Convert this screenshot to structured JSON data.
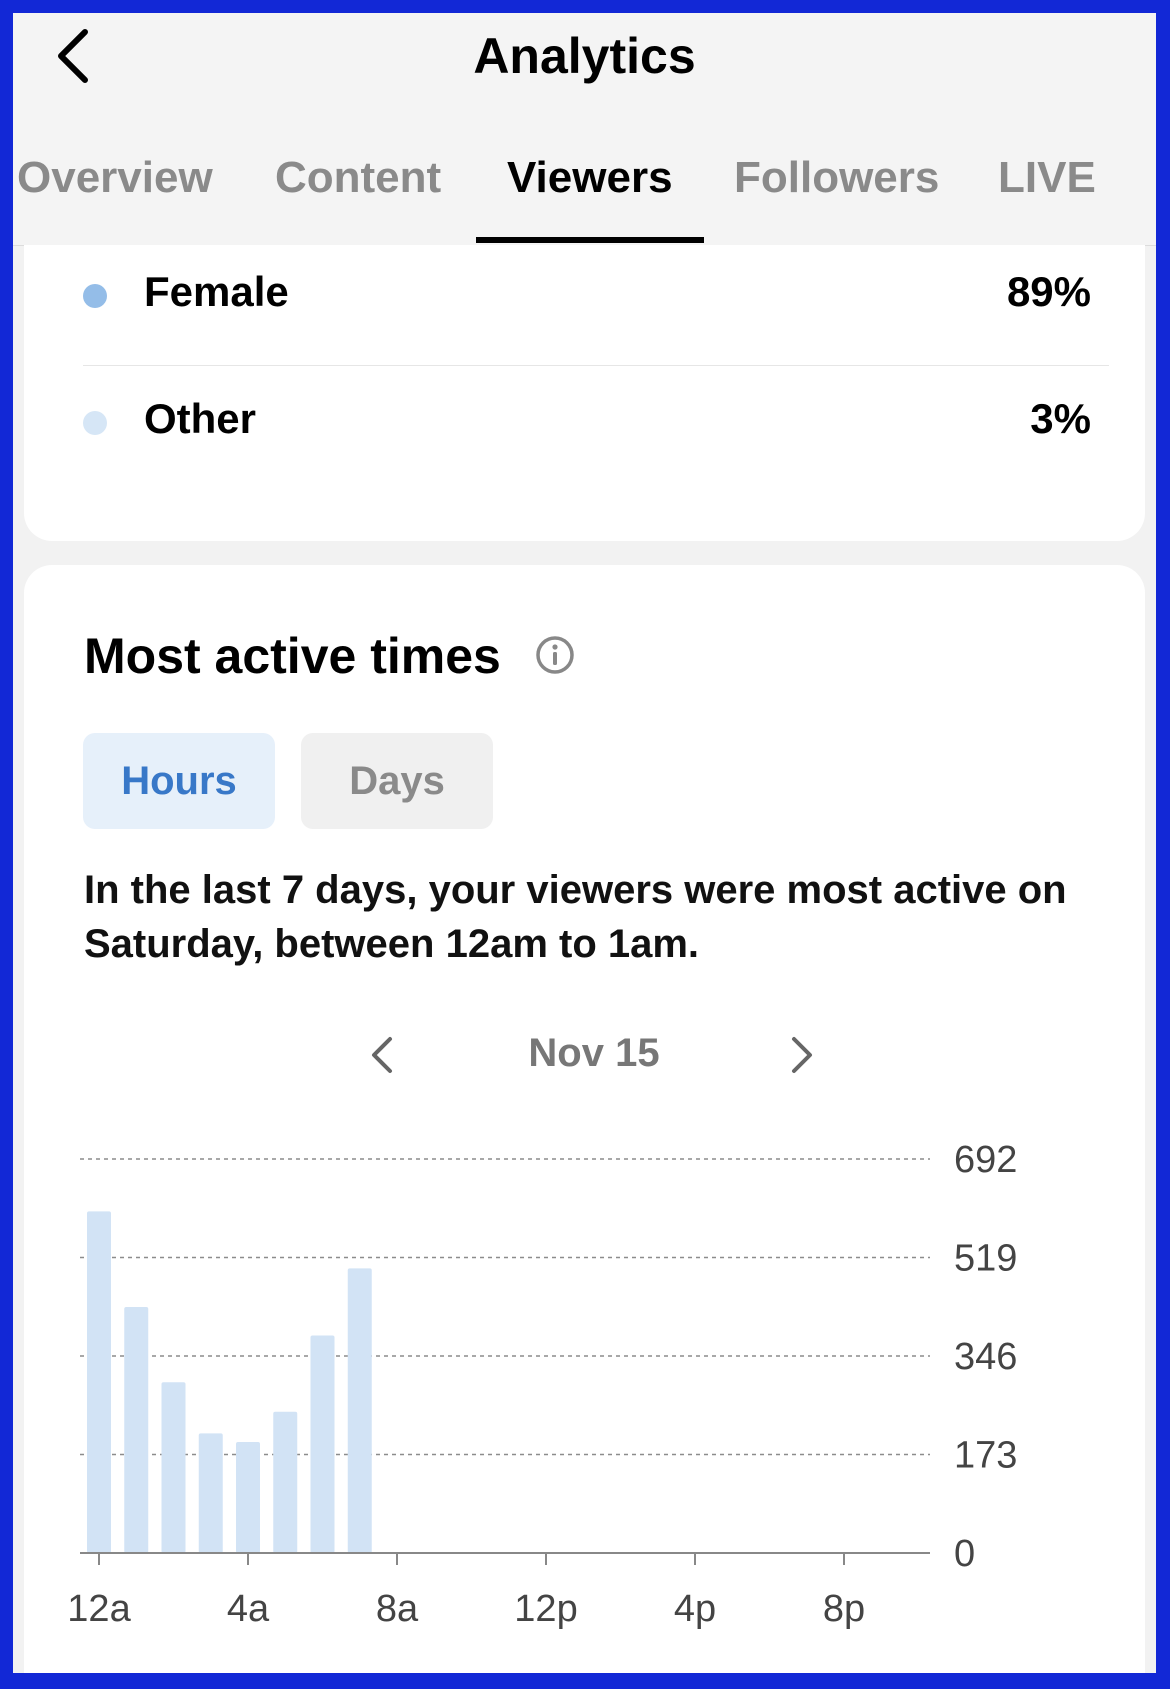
{
  "header": {
    "title": "Analytics",
    "back_icon": "chevron-left-icon",
    "tabs": [
      {
        "label": "Overview",
        "active": false
      },
      {
        "label": "Content",
        "active": false
      },
      {
        "label": "Viewers",
        "active": true
      },
      {
        "label": "Followers",
        "active": false
      },
      {
        "label": "LIVE",
        "active": false
      }
    ]
  },
  "gender": {
    "items": [
      {
        "label": "Female",
        "value": "89%",
        "color": "#94bde8"
      },
      {
        "label": "Other",
        "value": "3%",
        "color": "#d6e6f6"
      }
    ]
  },
  "active_times": {
    "title": "Most active times",
    "info_icon": "info-circle-icon",
    "toggle": {
      "hours": "Hours",
      "days": "Days",
      "selected": "Hours"
    },
    "summary": "In the last 7 days, your viewers were most active on Saturday, between 12am to 1am.",
    "date": "Nov 15",
    "prev_icon": "chevron-left-icon",
    "next_icon": "chevron-right-icon"
  },
  "colors": {
    "accent": "#3878c8",
    "bar": "#d2e3f5",
    "frame": "#1228d6"
  },
  "chart_data": {
    "type": "bar",
    "categories": [
      "12a",
      "1a",
      "2a",
      "3a",
      "4a",
      "5a",
      "6a",
      "7a"
    ],
    "values": [
      600,
      432,
      300,
      210,
      195,
      248,
      382,
      500
    ],
    "x_tick_labels": [
      "12a",
      "4a",
      "8a",
      "12p",
      "4p",
      "8p"
    ],
    "x_tick_hours": [
      0,
      4,
      8,
      12,
      16,
      20
    ],
    "x_range_hours": [
      0,
      24
    ],
    "y_ticks": [
      692,
      519,
      346,
      173,
      0
    ],
    "ylim": [
      0,
      692
    ],
    "grid": true,
    "y_axis_position": "right"
  }
}
